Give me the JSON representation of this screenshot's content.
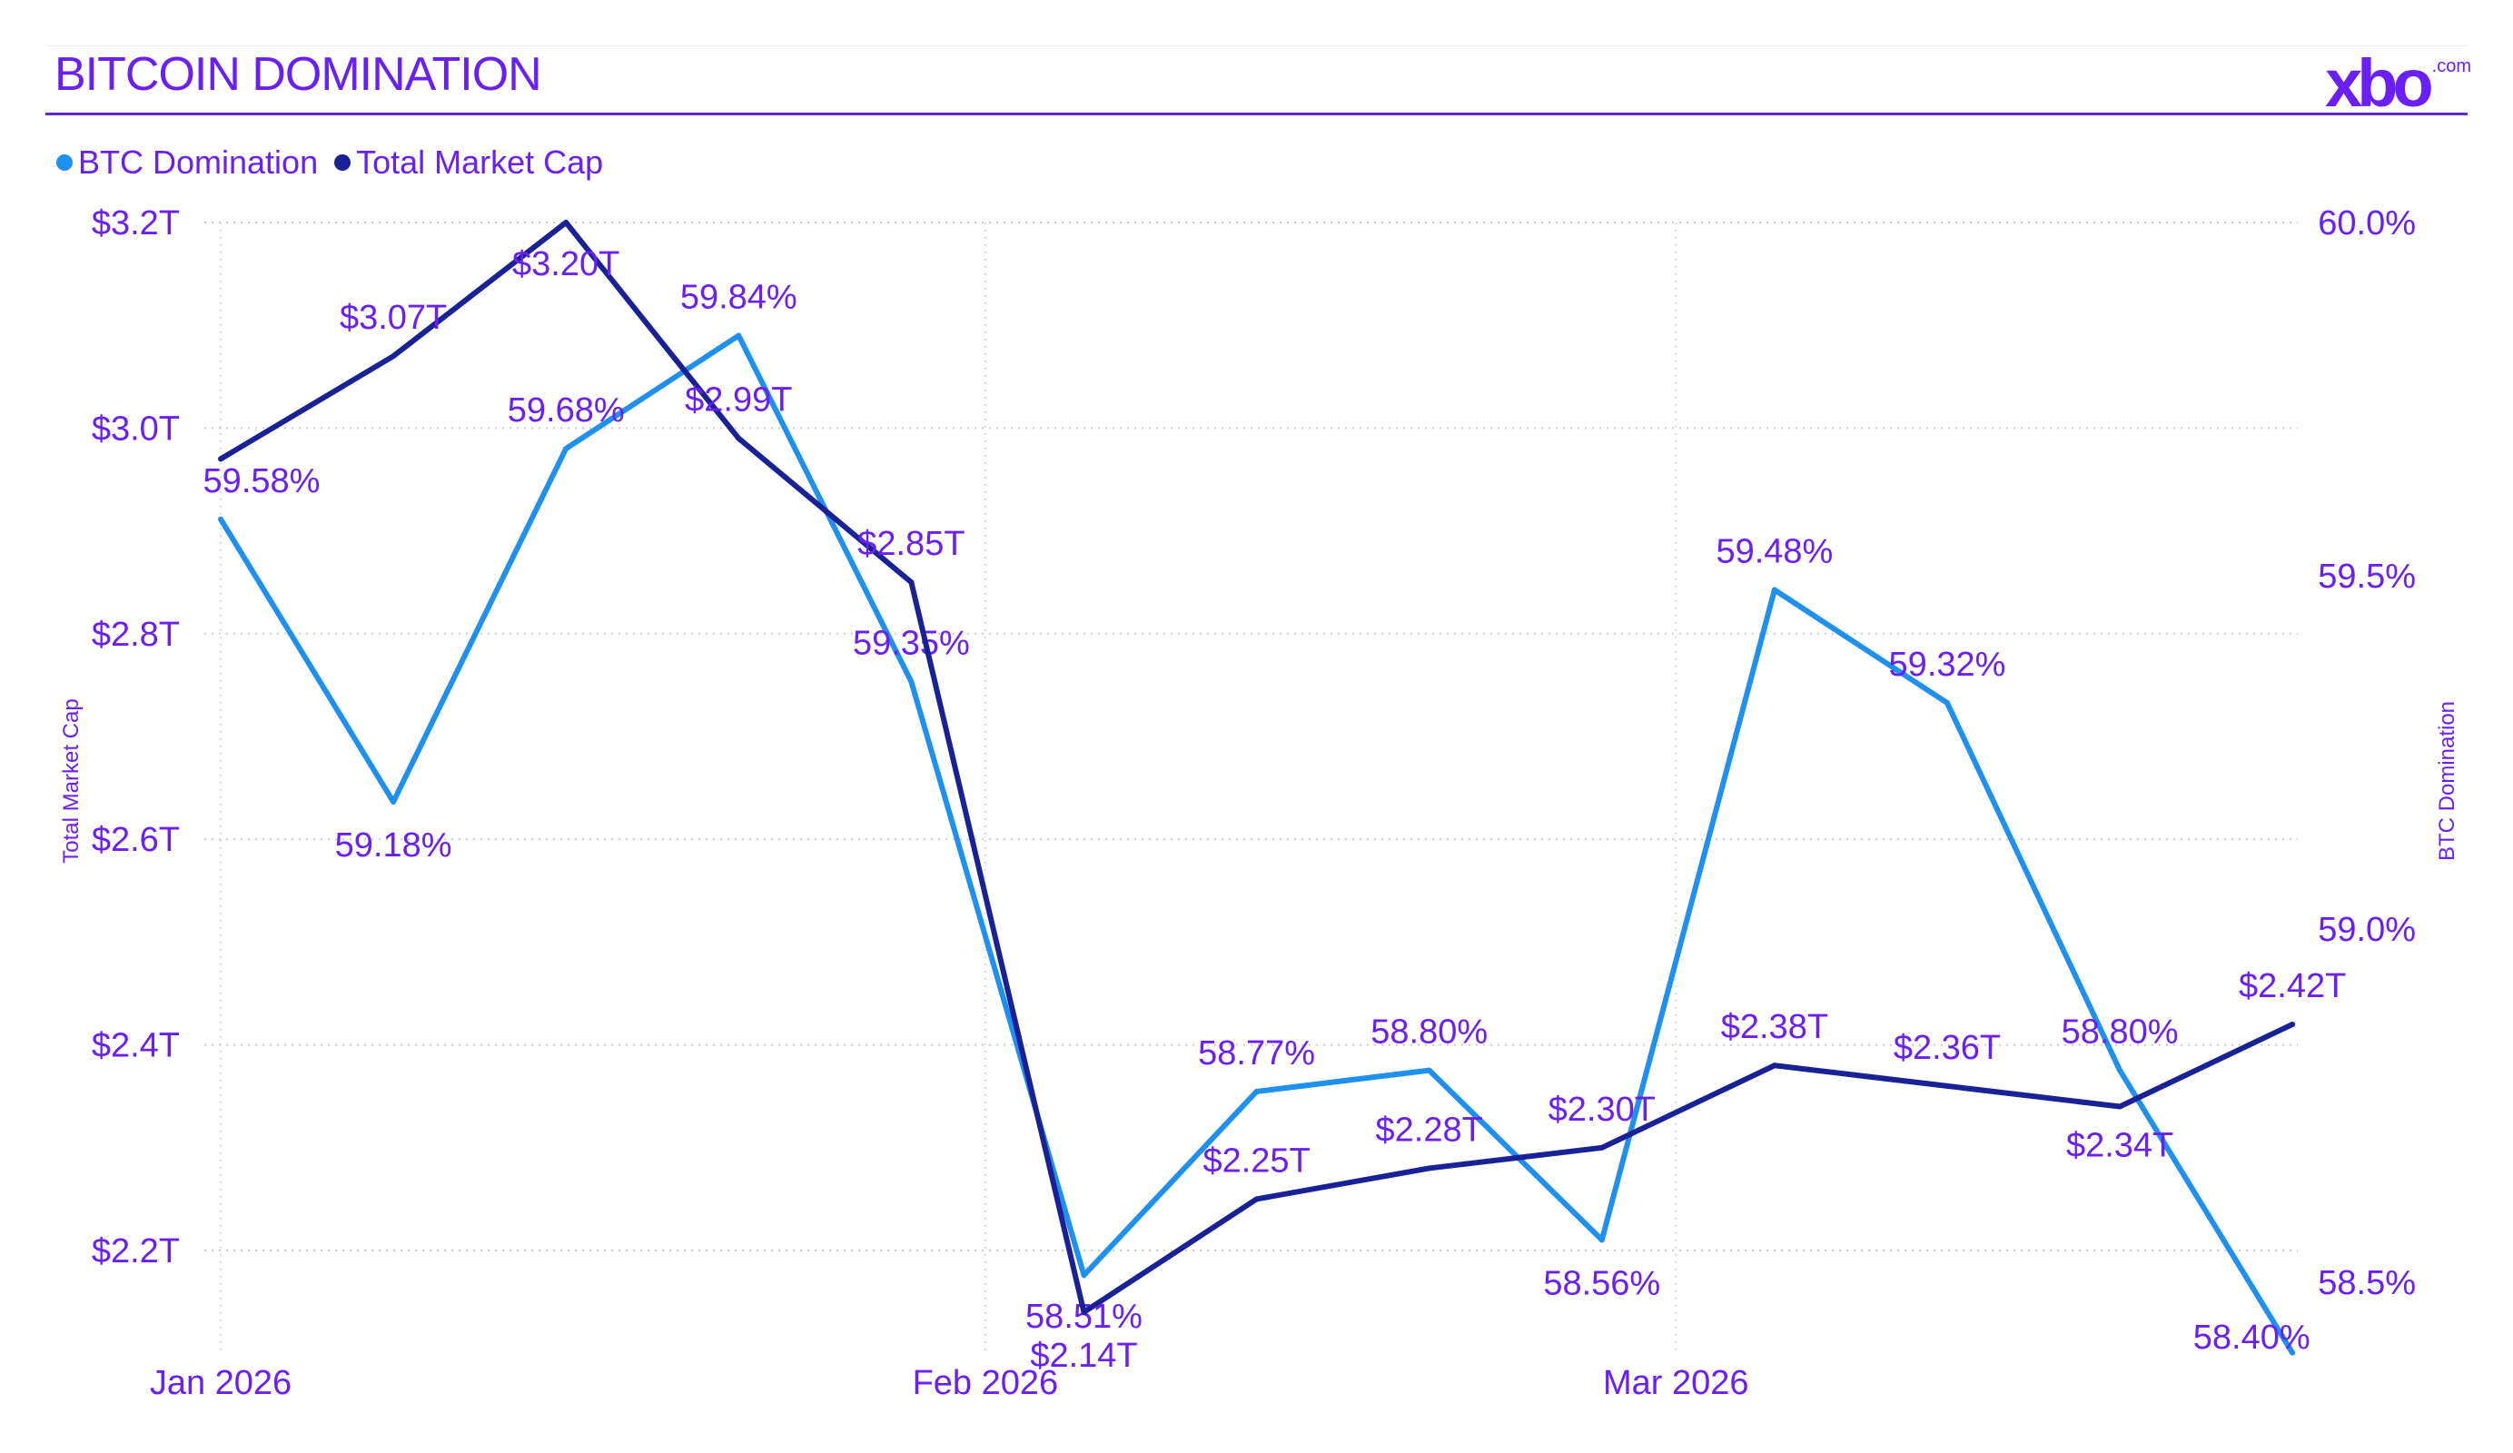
{
  "header": {
    "title": "BITCOIN DOMINATION",
    "logo": "xbo",
    "logo_suffix": ".com"
  },
  "colors": {
    "text": "#6a1ff5",
    "btc": "#1e90f0",
    "mcap": "#1a2196",
    "rule": "#5b2bc9"
  },
  "chart_data": {
    "type": "line",
    "title": "BITCOIN DOMINATION",
    "x": [
      "2026-01-01",
      "2026-01-08",
      "2026-01-15",
      "2026-01-22",
      "2026-01-29",
      "2026-02-05",
      "2026-02-12",
      "2026-02-19",
      "2026-02-26",
      "2026-03-05",
      "2026-03-12",
      "2026-03-19",
      "2026-03-26"
    ],
    "x_ticks": [
      "Jan 2026",
      "Feb 2026",
      "Mar 2026"
    ],
    "ylabel_left": "Total Market Cap",
    "ylabel_right": "BTC Domination",
    "ylim_left": [
      2.1,
      3.2
    ],
    "ylim_right": [
      58.4,
      60.0
    ],
    "y_ticks_left": [
      "$2.2T",
      "$2.4T",
      "$2.6T",
      "$2.8T",
      "$3.0T",
      "$3.2T"
    ],
    "y_ticks_right": [
      "58.5%",
      "59.0%",
      "59.5%",
      "60.0%"
    ],
    "legend": [
      "BTC Domination",
      "Total Market Cap"
    ],
    "legend_position": "top-left",
    "grid": true,
    "series": [
      {
        "name": "BTC Domination",
        "axis": "right",
        "values": [
          59.58,
          59.18,
          59.68,
          59.84,
          59.35,
          58.51,
          58.77,
          58.8,
          58.56,
          59.48,
          59.32,
          58.8,
          58.4
        ],
        "labels": [
          "59.58%",
          "59.18%",
          "59.68%",
          "59.84%",
          "59.35%",
          "58.51%",
          "58.77%",
          "58.80%",
          "58.56%",
          "59.48%",
          "59.32%",
          "58.80%",
          "58.40%"
        ]
      },
      {
        "name": "Total Market Cap",
        "axis": "left",
        "values": [
          2.97,
          3.07,
          3.2,
          2.99,
          2.85,
          2.14,
          2.25,
          2.28,
          2.3,
          2.38,
          2.36,
          2.34,
          2.42
        ],
        "labels": [
          null,
          "$3.07T",
          "$3.20T",
          "$2.99T",
          "$2.85T",
          "$2.14T",
          "$2.25T",
          "$2.28T",
          "$2.30T",
          "$2.38T",
          "$2.36T",
          "$2.34T",
          "$2.42T"
        ]
      }
    ]
  }
}
